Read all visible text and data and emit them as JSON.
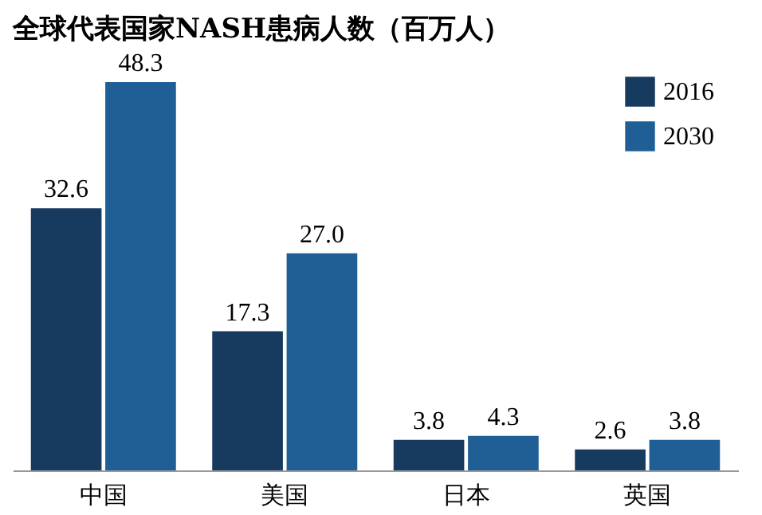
{
  "chart_data": {
    "type": "bar",
    "title": "全球代表国家NASH患病人数（百万人）",
    "categories": [
      "中国",
      "美国",
      "日本",
      "英国"
    ],
    "series": [
      {
        "name": "2016",
        "color": "#163b5f",
        "values": [
          32.6,
          17.3,
          3.8,
          2.6
        ],
        "value_labels": [
          "32.6",
          "17.3",
          "3.8",
          "2.6"
        ]
      },
      {
        "name": "2030",
        "color": "#1f5f96",
        "values": [
          48.3,
          27.0,
          4.3,
          3.8
        ],
        "value_labels": [
          "48.3",
          "27.0",
          "4.3",
          "3.8"
        ]
      }
    ],
    "legend": "top right",
    "grid": false,
    "tick_labels": "x"
  }
}
